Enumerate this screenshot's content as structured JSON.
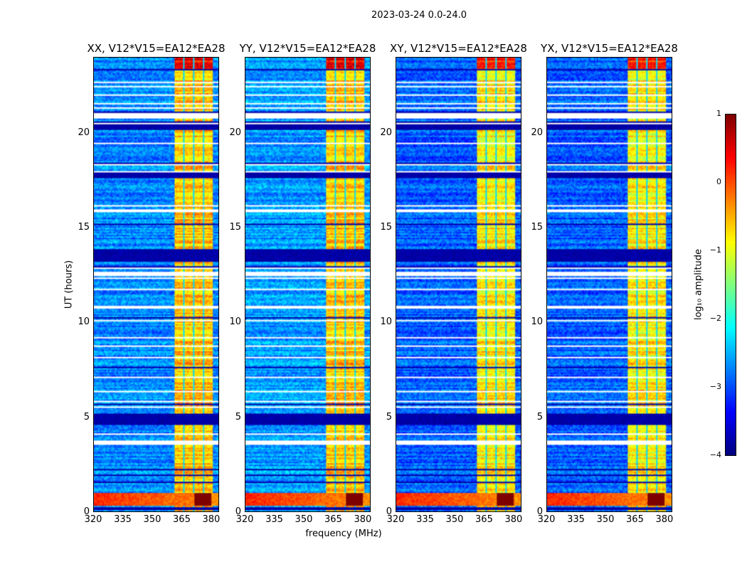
{
  "chart_data": {
    "type": "heatmap",
    "title": "2023-03-24 0.0-24.0",
    "xlabel": "frequency (MHz)",
    "ylabel": "UT (hours)",
    "xlim": [
      320,
      384
    ],
    "ylim": [
      0,
      24
    ],
    "xticks": [
      "320",
      "335",
      "350",
      "365",
      "380"
    ],
    "xtick_values": [
      320,
      335,
      350,
      365,
      380
    ],
    "yticks": [
      "0",
      "5",
      "10",
      "15",
      "20"
    ],
    "ytick_values": [
      0,
      5,
      10,
      15,
      20
    ],
    "panels": [
      {
        "title": "XX, V12*V15=EA12*EA28",
        "base_level": -2.7,
        "band_level": -0.7
      },
      {
        "title": "YY, V12*V15=EA12*EA28",
        "base_level": -2.6,
        "band_level": -0.7
      },
      {
        "title": "XY, V12*V15=EA12*EA28",
        "base_level": -2.9,
        "band_level": -0.9
      },
      {
        "title": "YX, V12*V15=EA12*EA28",
        "base_level": -2.9,
        "band_level": -0.9
      }
    ],
    "strong_band_mhz": [
      361.5,
      381
    ],
    "band_gaps_mhz": [
      366.2,
      371.3,
      376.3
    ],
    "rfi_burst_hours": [
      0.3,
      0.95
    ],
    "rfi_saturated_mhz": [
      372,
      380
    ],
    "flagged_hours": [
      [
        3.5,
        3.75
      ],
      [
        5.45,
        5.55
      ],
      [
        15.85,
        15.95
      ],
      [
        16.15,
        16.2
      ],
      [
        20.8,
        21.05
      ],
      [
        21.3,
        21.35
      ],
      [
        12.45,
        12.5
      ],
      [
        10.75,
        10.8
      ],
      [
        19.4,
        19.45
      ],
      [
        14.6,
        14.65
      ]
    ],
    "low_hours": [
      [
        4.6,
        5.2
      ],
      [
        17.6,
        18.0
      ],
      [
        20.3,
        20.6
      ],
      [
        13.2,
        13.9
      ],
      [
        0.05,
        0.2
      ]
    ],
    "colorbar": {
      "label": "log₁₀ amplitude",
      "range": [
        -4,
        1
      ],
      "colormap": "jet",
      "ticks": [
        "1",
        "0",
        "−1",
        "−2",
        "−3",
        "−4"
      ],
      "tick_values": [
        1,
        0,
        -1,
        -2,
        -3,
        -4
      ]
    }
  }
}
